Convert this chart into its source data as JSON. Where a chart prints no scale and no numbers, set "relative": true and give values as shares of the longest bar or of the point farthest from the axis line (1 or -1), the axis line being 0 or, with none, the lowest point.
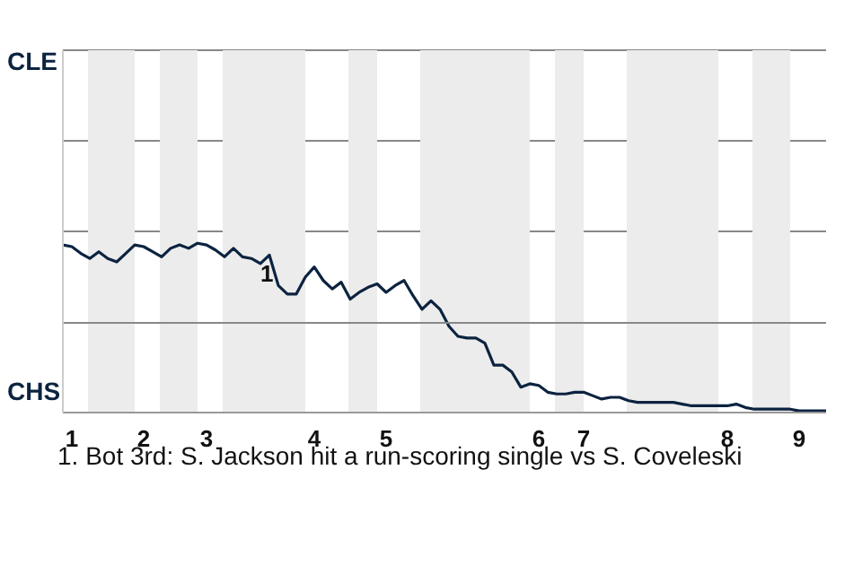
{
  "chart_data": {
    "type": "line",
    "relative": true,
    "categories": [
      null,
      "1",
      null,
      null,
      null,
      null,
      null,
      null,
      null,
      "2",
      null,
      null,
      null,
      null,
      null,
      null,
      "3",
      null,
      null,
      null,
      null,
      null,
      null,
      null,
      null,
      null,
      null,
      null,
      "4",
      null,
      null,
      null,
      null,
      null,
      null,
      null,
      "5",
      null,
      null,
      null,
      null,
      null,
      null,
      null,
      null,
      null,
      null,
      null,
      null,
      null,
      null,
      null,
      null,
      "6",
      null,
      null,
      null,
      null,
      "7",
      null,
      null,
      null,
      null,
      null,
      null,
      null,
      null,
      null,
      null,
      null,
      null,
      null,
      null,
      null,
      "8",
      null,
      null,
      null,
      null,
      null,
      null,
      null,
      "9",
      null,
      null,
      null
    ],
    "series": [
      {
        "color": "#0c2340",
        "values": [
          0.99,
          0.98,
          0.94,
          0.91,
          0.95,
          0.91,
          0.89,
          0.94,
          0.99,
          0.98,
          0.95,
          0.92,
          0.97,
          0.99,
          0.97,
          1,
          0.99,
          0.96,
          0.92,
          0.97,
          0.92,
          0.91,
          0.88,
          0.93,
          0.75,
          0.7,
          0.7,
          0.8,
          0.86,
          0.78,
          0.73,
          0.77,
          0.67,
          0.71,
          0.74,
          0.76,
          0.71,
          0.75,
          0.78,
          0.69,
          0.61,
          0.66,
          0.61,
          0.51,
          0.45,
          0.44,
          0.44,
          0.41,
          0.28,
          0.28,
          0.24,
          0.15,
          0.17,
          0.16,
          0.12,
          0.11,
          0.11,
          0.12,
          0.12,
          0.1,
          0.08,
          0.09,
          0.09,
          0.07,
          0.06,
          0.06,
          0.06,
          0.06,
          0.06,
          0.05,
          0.04,
          0.04,
          0.04,
          0.04,
          0.04,
          0.05,
          0.03,
          0.02,
          0.02,
          0.02,
          0.02,
          0.02,
          0.01,
          0.01,
          0.01,
          0.01
        ]
      }
    ],
    "legend": false,
    "ref_lines": [
      {
        "axis": "y",
        "value": 0.53,
        "color": "#888888"
      }
    ],
    "marker": "none",
    "line_style": "solid",
    "annotations": [
      "CLE",
      "CHS",
      "1",
      "1. Bot 3rd: S. Jackson hit a run-scoring single vs S. Coveleski"
    ]
  }
}
